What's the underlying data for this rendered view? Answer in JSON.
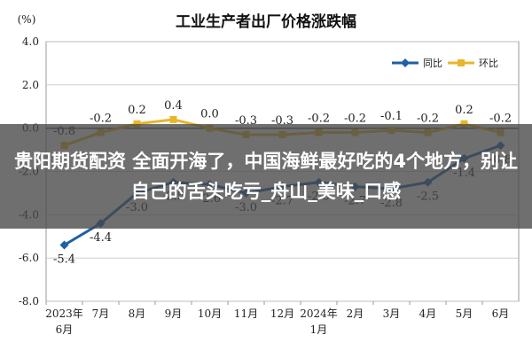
{
  "chart_data": {
    "type": "line",
    "title": "工业生产者出厂价格涨跌幅",
    "yunit": "(%)",
    "ylim": [
      -8.0,
      4.0
    ],
    "yticks": [
      "4.0",
      "2.0",
      "0.0",
      "-2.0",
      "-4.0",
      "-6.0",
      "-8.0"
    ],
    "categories": [
      [
        "2023年",
        "6月"
      ],
      [
        "7月"
      ],
      [
        "8月"
      ],
      [
        "9月"
      ],
      [
        "10月"
      ],
      [
        "11月"
      ],
      [
        "12月"
      ],
      [
        "2024年",
        "1月"
      ],
      [
        "2月"
      ],
      [
        "3月"
      ],
      [
        "4月"
      ],
      [
        "5月"
      ],
      [
        "6月"
      ]
    ],
    "legend_position": "top-right",
    "grid": true,
    "series": [
      {
        "name": "同比",
        "color": "#1f5fa8",
        "marker": "diamond",
        "values": [
          -5.4,
          -4.4,
          -3.0,
          -2.5,
          -2.6,
          -3.0,
          -2.7,
          -2.5,
          -2.7,
          -2.8,
          -2.5,
          -1.4,
          -0.8
        ],
        "labels": [
          "-5.4",
          "-4.4",
          "-3.0",
          "-2.5",
          "-2.6",
          "-3.0",
          "-2.7",
          "-2.5",
          "-2.7",
          "-2.8",
          "-2.5",
          "-1.4",
          "-0.8"
        ]
      },
      {
        "name": "环比",
        "color": "#e8b62a",
        "marker": "square",
        "values": [
          -0.8,
          -0.2,
          0.2,
          0.4,
          0.0,
          -0.3,
          -0.3,
          -0.2,
          -0.2,
          -0.1,
          -0.2,
          0.2,
          -0.2
        ],
        "labels": [
          "-0.8",
          "-0.2",
          "0.2",
          "0.4",
          "0.0",
          "-0.3",
          "-0.3",
          "-0.2",
          "-0.2",
          "-0.1",
          "-0.2",
          "0.2",
          "-0.2"
        ]
      }
    ]
  },
  "overlay": {
    "text": "贵阳期货配资 全面开海了，中国海鲜最好吃的4个地方，别让自己的舌头吃亏_舟山_美味_口感"
  }
}
